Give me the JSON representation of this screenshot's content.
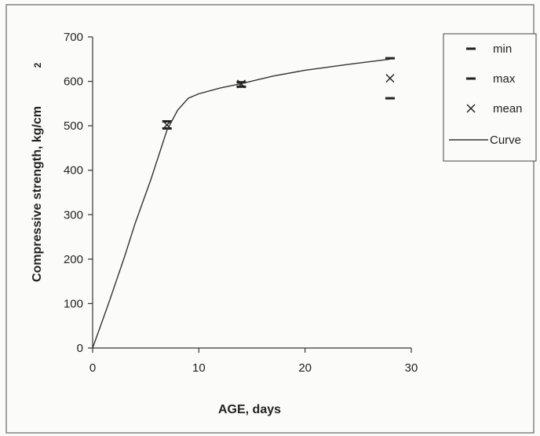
{
  "chart_data": {
    "type": "line",
    "title": "",
    "xlabel": "AGE, days",
    "ylabel": "Compressive strength, kg/cm",
    "ylabel_superscript": "2",
    "xlim": [
      0,
      30
    ],
    "ylim": [
      0,
      700
    ],
    "x_ticks": [
      "0",
      "10",
      "20",
      "30"
    ],
    "y_ticks": [
      "0",
      "100",
      "200",
      "300",
      "400",
      "500",
      "600",
      "700"
    ],
    "grid": false,
    "legend_position": "right",
    "series": [
      {
        "name": "min",
        "marker": "dash",
        "points": [
          {
            "x": 7,
            "y": 494
          },
          {
            "x": 14,
            "y": 588
          },
          {
            "x": 28,
            "y": 562
          }
        ]
      },
      {
        "name": "max",
        "marker": "dash",
        "points": [
          {
            "x": 7,
            "y": 510
          },
          {
            "x": 14,
            "y": 598
          },
          {
            "x": 28,
            "y": 652
          }
        ]
      },
      {
        "name": "mean",
        "marker": "x",
        "points": [
          {
            "x": 7,
            "y": 502
          },
          {
            "x": 14,
            "y": 594
          },
          {
            "x": 28,
            "y": 607
          }
        ]
      },
      {
        "name": "Curve",
        "marker": "line",
        "points": [
          {
            "x": 0,
            "y": 0
          },
          {
            "x": 1.5,
            "y": 100
          },
          {
            "x": 3,
            "y": 205
          },
          {
            "x": 4,
            "y": 280
          },
          {
            "x": 5.5,
            "y": 380
          },
          {
            "x": 7,
            "y": 490
          },
          {
            "x": 8,
            "y": 535
          },
          {
            "x": 9,
            "y": 562
          },
          {
            "x": 10,
            "y": 572
          },
          {
            "x": 12,
            "y": 585
          },
          {
            "x": 14,
            "y": 595
          },
          {
            "x": 17,
            "y": 612
          },
          {
            "x": 20,
            "y": 625
          },
          {
            "x": 24,
            "y": 638
          },
          {
            "x": 28,
            "y": 650
          }
        ]
      }
    ],
    "colors": {
      "line": "#333333",
      "marker": "#222222",
      "axis": "#333333",
      "frame": "#555555",
      "background": "#fbfbf9"
    }
  }
}
